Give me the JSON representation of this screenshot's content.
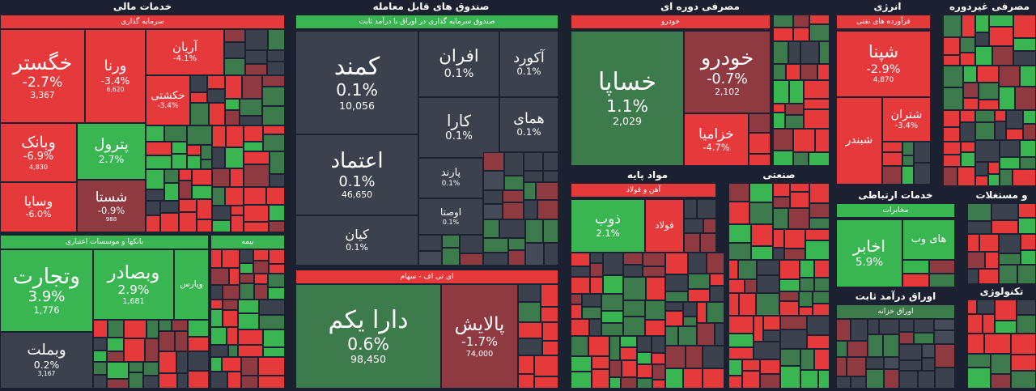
{
  "sectors": [
    {
      "title": "خدمات مالی",
      "groups": [
        {
          "title": "سرمایه گذاری",
          "tiles": [
            {
              "name": "خگستر",
              "change": "-2.7%",
              "volume": "3,367"
            },
            {
              "name": "ورنا",
              "change": "-3.4%",
              "volume": "6,620"
            },
            {
              "name": "آریان",
              "change": "-4.1%"
            },
            {
              "name": "حکشتی",
              "change": "-3.4%"
            },
            {
              "name": "وبانک",
              "change": "-6.9%",
              "volume": "4,830"
            },
            {
              "name": "وسایا",
              "change": "-6.0%"
            },
            {
              "name": "پترول",
              "change": "2.7%"
            },
            {
              "name": "شستا",
              "change": "-0.9%",
              "volume": "988"
            }
          ]
        },
        {
          "title": "بانکها و موسسات اعتباری",
          "tiles": [
            {
              "name": "وتجارت",
              "change": "3.9%",
              "volume": "1,776"
            },
            {
              "name": "وبصادر",
              "change": "2.9%",
              "volume": "1,681"
            },
            {
              "name": "وبملت",
              "change": "0.2%",
              "volume": "3,167"
            },
            {
              "name": "وپارس"
            }
          ]
        },
        {
          "title": "بیمه"
        }
      ]
    },
    {
      "title": "صندوق های قابل معامله",
      "groups": [
        {
          "title": "صندوق سرمایه گذاری در اوراق با درآمد ثابت",
          "tiles": [
            {
              "name": "کمند",
              "change": "0.1%",
              "volume": "10,056"
            },
            {
              "name": "اعتماد",
              "change": "0.1%",
              "volume": "46,650"
            },
            {
              "name": "کیان",
              "change": "0.1%"
            },
            {
              "name": "افران",
              "change": "0.1%"
            },
            {
              "name": "آکورد",
              "change": "0.1%"
            },
            {
              "name": "کارا",
              "change": "0.1%"
            },
            {
              "name": "همای",
              "change": "0.1%"
            },
            {
              "name": "پارند",
              "change": "0.1%"
            },
            {
              "name": "اوصتا",
              "change": "0.1%"
            }
          ]
        },
        {
          "title": "ای تی اف - سهام",
          "tiles": [
            {
              "name": "دارا یکم",
              "change": "0.6%",
              "volume": "98,450"
            },
            {
              "name": "پالایش",
              "change": "-1.7%",
              "volume": "74,000"
            }
          ]
        }
      ]
    },
    {
      "title": "مصرفی دوره ای",
      "groups": [
        {
          "title": "خودرو",
          "tiles": [
            {
              "name": "خساپا",
              "change": "1.1%",
              "volume": "2,029"
            },
            {
              "name": "خودرو",
              "change": "-0.7%",
              "volume": "2,102"
            },
            {
              "name": "خزامیا",
              "change": "-4.7%"
            }
          ]
        }
      ]
    },
    {
      "title": "مواد پایه",
      "groups": [
        {
          "title": "آهن و فولاد",
          "tiles": [
            {
              "name": "ذوب",
              "change": "2.1%"
            },
            {
              "name": "فولاد"
            }
          ]
        }
      ]
    },
    {
      "title": "صنعتی"
    },
    {
      "title": "انرژی",
      "groups": [
        {
          "title": "فرآورده های نفتی",
          "tiles": [
            {
              "name": "شپنا",
              "change": "-2.9%",
              "volume": "4,870"
            },
            {
              "name": "شبندر"
            },
            {
              "name": "شتران",
              "change": "-3.4%"
            }
          ]
        }
      ]
    },
    {
      "title": "مصرفی غیردوره ای"
    },
    {
      "title": "خدمات ارتباطی",
      "groups": [
        {
          "title": "مخابرات",
          "tiles": [
            {
              "name": "اخابر",
              "change": "5.9%"
            },
            {
              "name": "های وب"
            }
          ]
        }
      ]
    },
    {
      "title": "و مستغلات"
    },
    {
      "title": "اوراق درآمد ثابت",
      "groups": [
        {
          "title": "اوراق خزانه"
        }
      ]
    },
    {
      "title": "تکنولوژی"
    }
  ]
}
